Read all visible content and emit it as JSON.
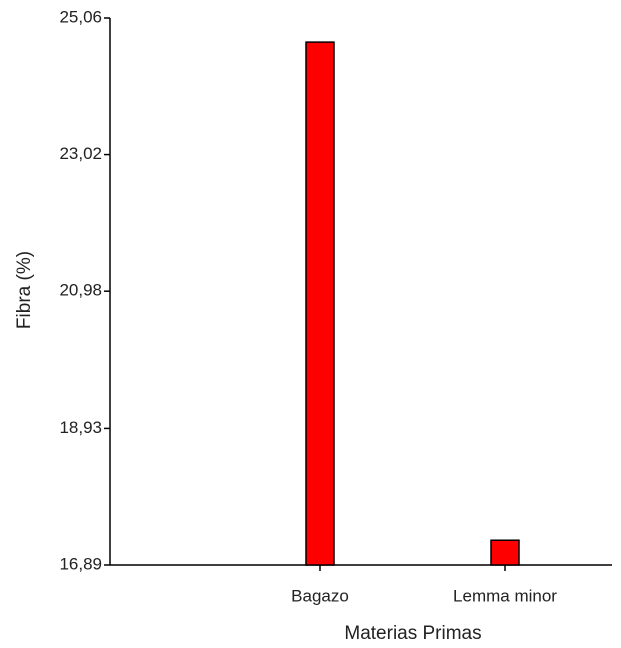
{
  "chart_data": {
    "type": "bar",
    "x_label": "Materias Primas",
    "y_label": "Fibra (%)",
    "categories": [
      "Bagazo",
      "Lemma minor"
    ],
    "values": [
      24.7,
      17.26
    ],
    "color": "#ff0000",
    "ylim": [
      16.89,
      25.06
    ],
    "yticks": [
      {
        "value": 16.89,
        "label": "16,89"
      },
      {
        "value": 18.93,
        "label": "18,93"
      },
      {
        "value": 20.98,
        "label": "20,98"
      },
      {
        "value": 23.02,
        "label": "23,02"
      },
      {
        "value": 25.06,
        "label": "25,06"
      }
    ]
  }
}
